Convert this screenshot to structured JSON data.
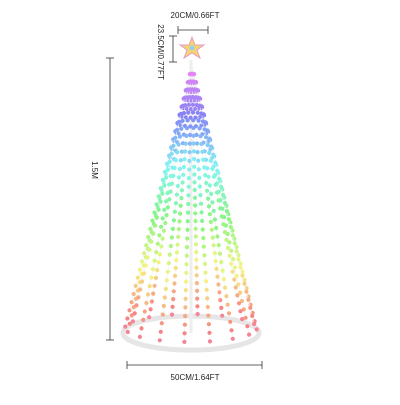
{
  "dimensions": {
    "star_width": "20CM/0.66FT",
    "star_height": "23.5CM/0.77FT",
    "height": "1.5M",
    "base_width": "50CM/1.64FT"
  }
}
